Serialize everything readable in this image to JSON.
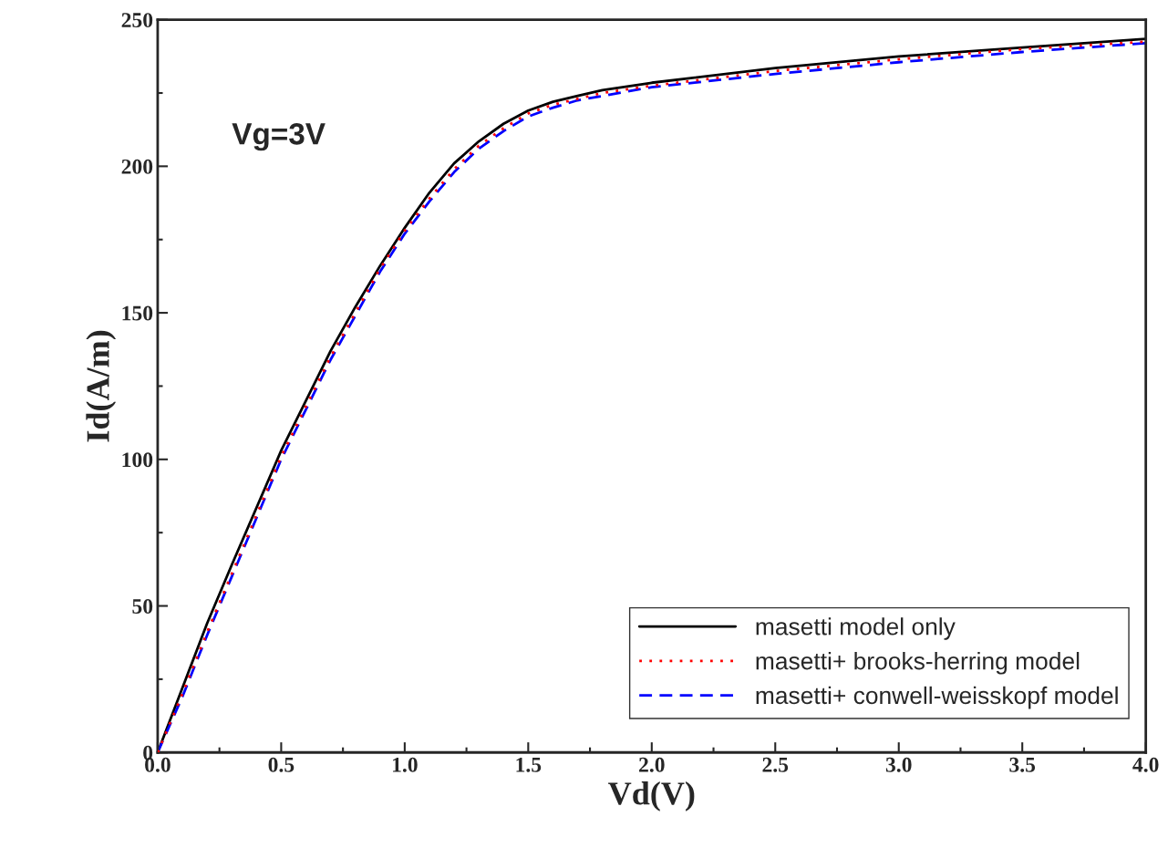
{
  "chart_data": {
    "type": "line",
    "xlabel": "Vd(V)",
    "ylabel": "Id(A/m)",
    "annotations": [
      "Vg=3V"
    ],
    "x": [
      0,
      0.1,
      0.2,
      0.3,
      0.5,
      0.7,
      0.8,
      0.9,
      1.0,
      1.1,
      1.2,
      1.3,
      1.4,
      1.5,
      1.6,
      1.7,
      1.8,
      2.0,
      2.5,
      3.0,
      3.5,
      4.0
    ],
    "series": [
      {
        "name": "masetti model only",
        "color": "#000000",
        "line_style": "solid",
        "values": [
          0,
          22,
          44,
          64,
          103,
          137,
          152,
          166,
          179,
          191,
          201,
          208.5,
          214.5,
          219,
          222,
          224,
          226,
          228.5,
          233.5,
          237.5,
          240.5,
          243.5
        ]
      },
      {
        "name": "masetti+ brooks-herring model",
        "color": "#ff0000",
        "line_style": "dotted",
        "values": [
          0,
          20,
          41,
          61,
          101,
          135,
          150,
          165,
          178,
          189,
          199,
          207,
          213,
          218,
          221,
          223,
          225,
          227.5,
          232.5,
          236.5,
          240,
          242.5
        ]
      },
      {
        "name": "masetti+ conwell-weisskopf model",
        "color": "#0000ff",
        "line_style": "dashed",
        "values": [
          0,
          19,
          40,
          60,
          100,
          134,
          149,
          164,
          177,
          188,
          198,
          206,
          212,
          217,
          220,
          222.5,
          224,
          227,
          231.5,
          235.5,
          239,
          242
        ]
      }
    ],
    "xlim": [
      0,
      4
    ],
    "xticks": [
      {
        "value": 0,
        "label": "0.0"
      },
      {
        "value": 0.5,
        "label": "0.5"
      },
      {
        "value": 1,
        "label": "1.0"
      },
      {
        "value": 1.5,
        "label": "1.5"
      },
      {
        "value": 2,
        "label": "2.0"
      },
      {
        "value": 2.5,
        "label": "2.5"
      },
      {
        "value": 3,
        "label": "3.0"
      },
      {
        "value": 3.5,
        "label": "3.5"
      },
      {
        "value": 4,
        "label": "4.0"
      }
    ],
    "ylim": [
      0,
      250
    ],
    "yticks": [
      0,
      50,
      100,
      150,
      200,
      250
    ],
    "grid": false,
    "legend": "bottom right",
    "marker": "none"
  }
}
